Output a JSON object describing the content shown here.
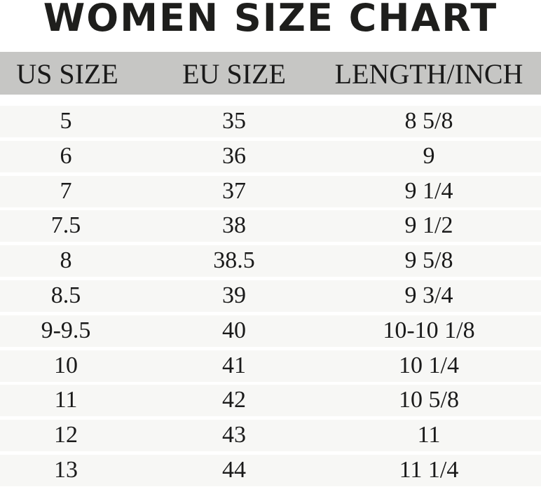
{
  "title": "WOMEN SIZE CHART",
  "columns": [
    "US SIZE",
    "EU SIZE",
    "LENGTH/INCH"
  ],
  "rows": [
    [
      "5",
      "35",
      "8 5/8"
    ],
    [
      "6",
      "36",
      "9"
    ],
    [
      "7",
      "37",
      "9 1/4"
    ],
    [
      "7.5",
      "38",
      "9 1/2"
    ],
    [
      "8",
      "38.5",
      "9 5/8"
    ],
    [
      "8.5",
      "39",
      "9 3/4"
    ],
    [
      "9-9.5",
      "40",
      "10-10 1/8"
    ],
    [
      "10",
      "41",
      "10 1/4"
    ],
    [
      "11",
      "42",
      "10 5/8"
    ],
    [
      "12",
      "43",
      "11"
    ],
    [
      "13",
      "44",
      "11 1/4"
    ]
  ],
  "colors": {
    "header_bg": "#c6c6c4",
    "row_bg": "#f7f7f5",
    "text": "#1a1a1a"
  }
}
